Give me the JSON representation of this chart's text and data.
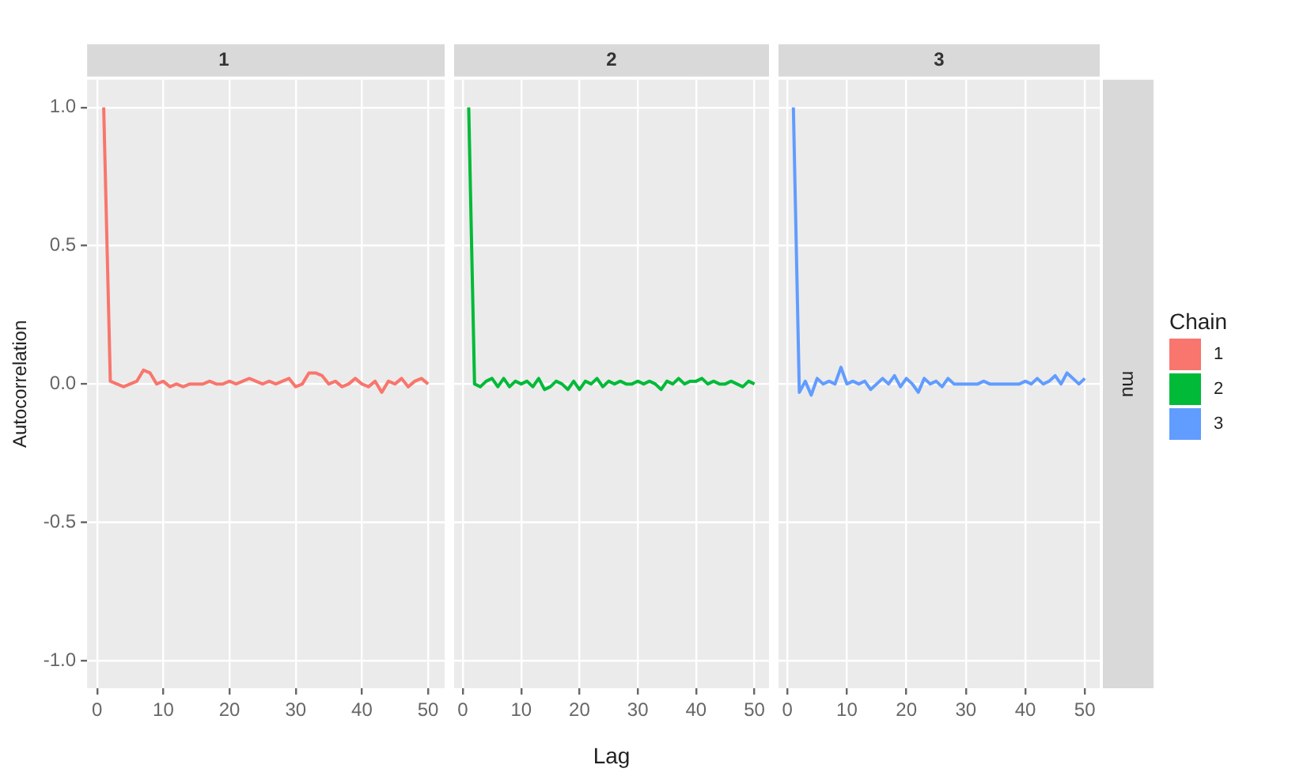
{
  "chart_data": [
    {
      "type": "line",
      "title": "1",
      "ylabel": "Autocorrelation",
      "x": [
        1,
        2,
        3,
        4,
        5,
        6,
        7,
        8,
        9,
        10,
        11,
        12,
        13,
        14,
        15,
        16,
        17,
        18,
        19,
        20,
        21,
        22,
        23,
        24,
        25,
        26,
        27,
        28,
        29,
        30,
        31,
        32,
        33,
        34,
        35,
        36,
        37,
        38,
        39,
        40,
        41,
        42,
        43,
        44,
        45,
        46,
        47,
        48,
        49,
        50
      ],
      "xlim": [
        -1.5,
        52.5
      ],
      "xticks": [
        0,
        10,
        20,
        30,
        40,
        50
      ],
      "ylim": [
        -1.1,
        1.1
      ],
      "yticks": [
        {
          "value": -1,
          "label": "-1.0"
        },
        -0.5,
        {
          "value": 0,
          "label": "0.0"
        },
        0.5,
        {
          "value": 1,
          "label": "1.0"
        }
      ],
      "grid": true,
      "marker": "none",
      "series": [
        {
          "name": "1",
          "color": "#f8766d",
          "values": [
            1.0,
            0.01,
            0.0,
            -0.01,
            0.0,
            0.01,
            0.05,
            0.04,
            0.0,
            0.01,
            -0.01,
            0.0,
            -0.01,
            0.0,
            0.0,
            0.0,
            0.01,
            0.0,
            0.0,
            0.01,
            0.0,
            0.01,
            0.02,
            0.01,
            0.0,
            0.01,
            0.0,
            0.01,
            0.02,
            -0.01,
            0.0,
            0.04,
            0.04,
            0.03,
            0.0,
            0.01,
            -0.01,
            0.0,
            0.02,
            0.0,
            -0.01,
            0.01,
            -0.03,
            0.01,
            0.0,
            0.02,
            -0.01,
            0.01,
            0.02,
            0.0
          ]
        }
      ]
    },
    {
      "type": "line",
      "title": "2",
      "xlabel": "Lag",
      "x": [
        1,
        2,
        3,
        4,
        5,
        6,
        7,
        8,
        9,
        10,
        11,
        12,
        13,
        14,
        15,
        16,
        17,
        18,
        19,
        20,
        21,
        22,
        23,
        24,
        25,
        26,
        27,
        28,
        29,
        30,
        31,
        32,
        33,
        34,
        35,
        36,
        37,
        38,
        39,
        40,
        41,
        42,
        43,
        44,
        45,
        46,
        47,
        48,
        49,
        50
      ],
      "xlim": [
        -1.5,
        52.5
      ],
      "xticks": [
        0,
        10,
        20,
        30,
        40,
        50
      ],
      "ylim": [
        -1.1,
        1.1
      ],
      "yticks": [
        -1,
        -0.5,
        0,
        0.5,
        1
      ],
      "tick_labels": "x",
      "grid": true,
      "marker": "none",
      "series": [
        {
          "name": "2",
          "color": "#00ba38",
          "values": [
            1.0,
            0.0,
            -0.01,
            0.01,
            0.02,
            -0.01,
            0.02,
            -0.01,
            0.01,
            0.0,
            0.01,
            -0.01,
            0.02,
            -0.02,
            -0.01,
            0.01,
            0.0,
            -0.02,
            0.01,
            -0.02,
            0.01,
            0.0,
            0.02,
            -0.01,
            0.01,
            0.0,
            0.01,
            0.0,
            0.0,
            0.01,
            0.0,
            0.01,
            0.0,
            -0.02,
            0.01,
            0.0,
            0.02,
            0.0,
            0.01,
            0.01,
            0.02,
            0.0,
            0.01,
            0.0,
            0.0,
            0.01,
            0.0,
            -0.01,
            0.01,
            0.0
          ]
        }
      ]
    },
    {
      "type": "line",
      "title": "3",
      "annotations": [
        "mu"
      ],
      "legend_title": "Chain",
      "legend": "right",
      "x": [
        1,
        2,
        3,
        4,
        5,
        6,
        7,
        8,
        9,
        10,
        11,
        12,
        13,
        14,
        15,
        16,
        17,
        18,
        19,
        20,
        21,
        22,
        23,
        24,
        25,
        26,
        27,
        28,
        29,
        30,
        31,
        32,
        33,
        34,
        35,
        36,
        37,
        38,
        39,
        40,
        41,
        42,
        43,
        44,
        45,
        46,
        47,
        48,
        49,
        50
      ],
      "xlim": [
        -1.5,
        52.5
      ],
      "xticks": [
        0,
        10,
        20,
        30,
        40,
        50
      ],
      "ylim": [
        -1.1,
        1.1
      ],
      "yticks": [
        -1,
        -0.5,
        0,
        0.5,
        1
      ],
      "tick_labels": "x",
      "grid": true,
      "marker": "none",
      "series": [
        {
          "name": "3",
          "color": "#619cff",
          "values": [
            1.0,
            -0.03,
            0.01,
            -0.04,
            0.02,
            0.0,
            0.01,
            0.0,
            0.06,
            0.0,
            0.01,
            0.0,
            0.01,
            -0.02,
            0.0,
            0.02,
            0.0,
            0.03,
            -0.01,
            0.02,
            0.0,
            -0.03,
            0.02,
            0.0,
            0.01,
            -0.01,
            0.02,
            0.0,
            0.0,
            0.0,
            0.0,
            0.0,
            0.01,
            0.0,
            0.0,
            0.0,
            0.0,
            0.0,
            0.0,
            0.01,
            0.0,
            0.02,
            0.0,
            0.01,
            0.03,
            0.0,
            0.04,
            0.02,
            0.0,
            0.02
          ]
        }
      ]
    }
  ]
}
